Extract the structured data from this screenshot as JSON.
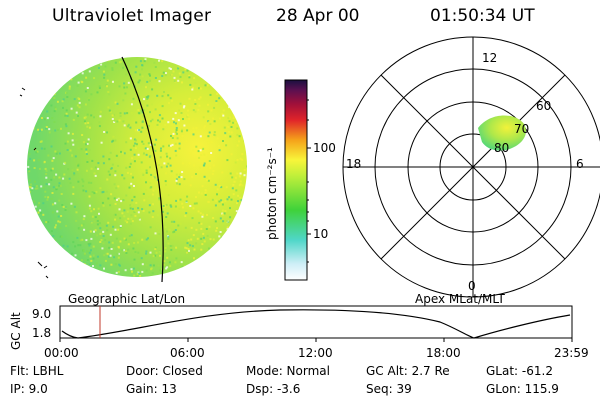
{
  "header": {
    "title": "Ultraviolet Imager",
    "date": "28 Apr 00",
    "time": "01:50:34 UT"
  },
  "colorbar": {
    "unit_label": "photon cm⁻²s⁻¹",
    "ticks": [
      "100",
      "10"
    ]
  },
  "polar_plot": {
    "mlt_labels": {
      "top": "12",
      "left": "18",
      "right": "6",
      "bottom": "0"
    },
    "lat_labels": [
      "60",
      "70",
      "80"
    ]
  },
  "map_labels": {
    "left": "Geographic Lat/Lon",
    "right": "Apex MLat/MLT"
  },
  "altitude_plot": {
    "ylabel": "GC Alt",
    "y_ticks": [
      "9.0",
      "1.8"
    ],
    "x_ticks": [
      "00:00",
      "06:00",
      "12:00",
      "18:00",
      "23:59"
    ],
    "current_time_marker": "01:50"
  },
  "footer": {
    "filter": "Flt:  LBHL",
    "ip": "IP:  9.0",
    "door": "Door:  Closed",
    "gain": "Gain:  13",
    "mode": "Mode:  Normal",
    "dsp": "Dsp:      -3.6",
    "gc_alt": "GC Alt:  2.7 Re",
    "seq": "Seq:  39",
    "glat": "GLat:  -61.2",
    "glon": "GLon:  115.9"
  },
  "colors": {
    "earth_disk_low": "#8fe04a",
    "earth_disk_high": "#f2f23a",
    "terminator": "#000000",
    "marker": "#c0392b"
  }
}
